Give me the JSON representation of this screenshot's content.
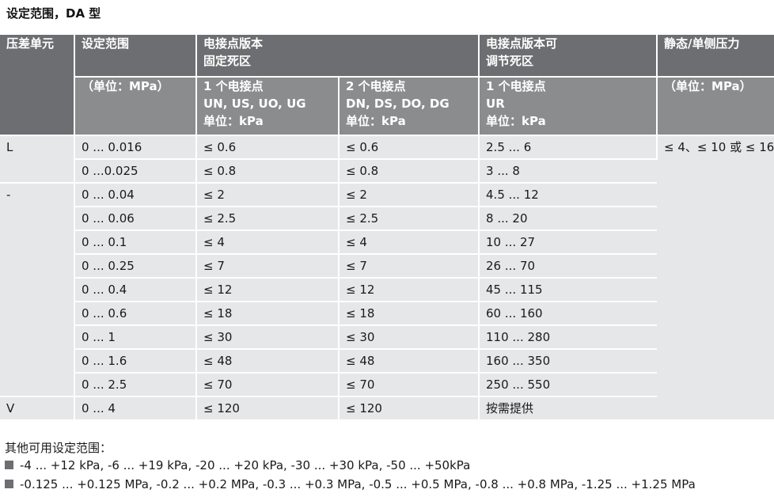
{
  "title": "设定范围，DA 型",
  "header_row1": {
    "col1": "压差单元",
    "col2": "设定范围",
    "col3_line1": "电接点版本",
    "col3_line2": "固定死区",
    "col4_line1": "电接点版本可",
    "col4_line2": "调节死区",
    "col5": "静态/单侧压力"
  },
  "header_row2": {
    "col2": "（单位：MPa）",
    "col3a_line1": "1 个电接点",
    "col3a_line2": "UN, US, UO, UG",
    "col3a_line3": "单位：kPa",
    "col3b_line1": "2 个电接点",
    "col3b_line2": "DN, DS, DO, DG",
    "col3b_line3": "单位：kPa",
    "col4_line1": "1 个电接点",
    "col4_line2": "UR",
    "col4_line3": "单位：kPa",
    "col5": "（单位：MPa）"
  },
  "rows": [
    {
      "unit": "L",
      "range": "0 ... 0.016",
      "one_contact": "≤ 0.6",
      "two_contact": "≤ 0.6",
      "adjustable": "2.5 ... 6"
    },
    {
      "unit": "",
      "range": "0 ...0.025",
      "one_contact": "≤ 0.8",
      "two_contact": "≤ 0.8",
      "adjustable": "3 ... 8"
    },
    {
      "unit": "-",
      "range": "0 ... 0.04",
      "one_contact": "≤ 2",
      "two_contact": "≤ 2",
      "adjustable": "4.5 ... 12"
    },
    {
      "unit": "",
      "range": "0 ... 0.06",
      "one_contact": "≤ 2.5",
      "two_contact": "≤ 2.5",
      "adjustable": "8 ... 20"
    },
    {
      "unit": "",
      "range": "0 ... 0.1",
      "one_contact": "≤ 4",
      "two_contact": "≤ 4",
      "adjustable": "10 ... 27"
    },
    {
      "unit": "",
      "range": "0 ... 0.25",
      "one_contact": "≤ 7",
      "two_contact": "≤ 7",
      "adjustable": "26 ... 70"
    },
    {
      "unit": "",
      "range": "0 ... 0.4",
      "one_contact": "≤ 12",
      "two_contact": "≤ 12",
      "adjustable": "45 ... 115"
    },
    {
      "unit": "",
      "range": "0 ... 0.6",
      "one_contact": "≤ 18",
      "two_contact": "≤ 18",
      "adjustable": "60 ... 160"
    },
    {
      "unit": "",
      "range": "0 ... 1",
      "one_contact": "≤ 30",
      "two_contact": "≤ 30",
      "adjustable": "110 ... 280"
    },
    {
      "unit": "",
      "range": "0 ... 1.6",
      "one_contact": "≤ 48",
      "two_contact": "≤ 48",
      "adjustable": "160 ... 350"
    },
    {
      "unit": "",
      "range": "0 ... 2.5",
      "one_contact": "≤ 70",
      "two_contact": "≤ 70",
      "adjustable": "250 ... 550"
    },
    {
      "unit": "V",
      "range": "0 ... 4",
      "one_contact": "≤ 120",
      "two_contact": "≤ 120",
      "adjustable": "按需提供"
    }
  ],
  "static_pressure": "≤ 4、≤ 10 或 ≤ 16",
  "footer": {
    "label": "其他可用设定范围：",
    "bullet1": "-4 ... +12 kPa, -6 ... +19 kPa, -20 ... +20 kPa, -30 ... +30 kPa, -50 ... +50kPa",
    "bullet2": "-0.125 ... +0.125 MPa, -0.2 ... +0.2 MPa, -0.3 ... +0.3 MPa, -0.5 ... +0.5 MPa, -0.8 ... +0.8 MPa, -1.25 ... +1.25 MPa"
  }
}
